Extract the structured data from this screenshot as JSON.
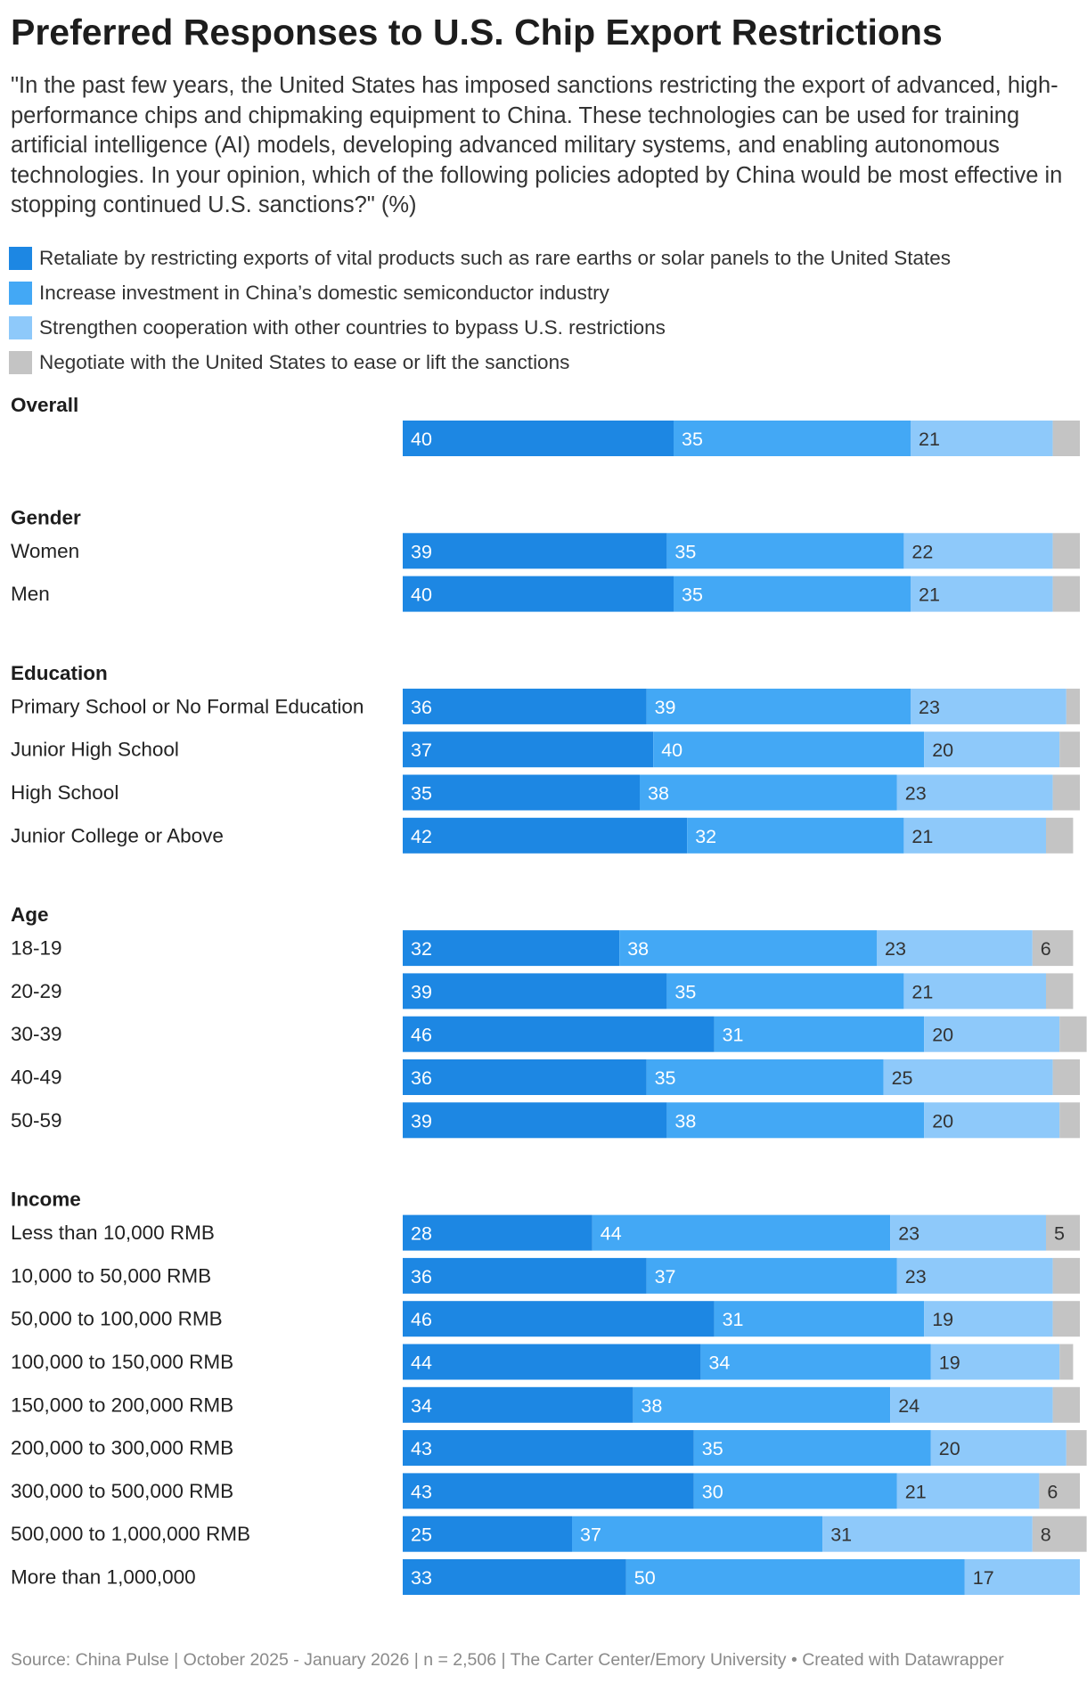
{
  "title": "Preferred Responses to U.S. Chip Export Restrictions",
  "subtitle": "\"In the past few years, the United States has imposed sanctions restricting the export of advanced, high-performance chips and chipmaking equipment to China. These technologies can be used for training artificial intelligence (AI) models, developing advanced military systems, and enabling autonomous technologies. In your opinion, which of the following policies adopted by China would be most effective in stopping continued U.S. sanctions?\" (%)",
  "source": "Source: China Pulse | October 2025 - January 2026 | n = 2,506 | The Carter Center/Emory University • Created with Datawrapper",
  "colors": {
    "retaliate": "#1d87e3",
    "invest": "#43a8f5",
    "cooperate": "#8ec9fa",
    "negotiate": "#c4c4c4",
    "label_dark_bg": "#ffffff",
    "label_light_bg": "#333333"
  },
  "chart_data": {
    "type": "bar",
    "orientation": "horizontal",
    "stacked": true,
    "unit": "%",
    "series": [
      {
        "name": "Retaliate by restricting exports of vital products such as rare earths or solar panels to the United States",
        "color": "#1d87e3"
      },
      {
        "name": "Increase investment in China’s domestic semiconductor industry",
        "color": "#43a8f5"
      },
      {
        "name": "Strengthen cooperation with other countries to bypass U.S. restrictions",
        "color": "#8ec9fa"
      },
      {
        "name": "Negotiate with the United States to ease or lift the sanctions",
        "color": "#c4c4c4"
      }
    ],
    "groups": [
      {
        "name": "Overall",
        "rows": [
          {
            "label": "",
            "values": [
              40,
              35,
              21,
              4
            ]
          }
        ]
      },
      {
        "name": "Gender",
        "rows": [
          {
            "label": "Women",
            "values": [
              39,
              35,
              22,
              4
            ]
          },
          {
            "label": "Men",
            "values": [
              40,
              35,
              21,
              4
            ]
          }
        ]
      },
      {
        "name": "Education",
        "rows": [
          {
            "label": "Primary School or No Formal Education",
            "values": [
              36,
              39,
              23,
              2
            ]
          },
          {
            "label": "Junior High School",
            "values": [
              37,
              40,
              20,
              3
            ]
          },
          {
            "label": "High School",
            "values": [
              35,
              38,
              23,
              4
            ]
          },
          {
            "label": "Junior College or Above",
            "values": [
              42,
              32,
              21,
              4
            ]
          }
        ]
      },
      {
        "name": "Age",
        "rows": [
          {
            "label": "18-19",
            "values": [
              32,
              38,
              23,
              6
            ]
          },
          {
            "label": "20-29",
            "values": [
              39,
              35,
              21,
              4
            ]
          },
          {
            "label": "30-39",
            "values": [
              46,
              31,
              20,
              4
            ]
          },
          {
            "label": "40-49",
            "values": [
              36,
              35,
              25,
              4
            ]
          },
          {
            "label": "50-59",
            "values": [
              39,
              38,
              20,
              3
            ]
          }
        ]
      },
      {
        "name": "Income",
        "rows": [
          {
            "label": "Less than 10,000 RMB",
            "values": [
              28,
              44,
              23,
              5
            ]
          },
          {
            "label": "10,000 to 50,000 RMB",
            "values": [
              36,
              37,
              23,
              4
            ]
          },
          {
            "label": "50,000 to 100,000 RMB",
            "values": [
              46,
              31,
              19,
              4
            ]
          },
          {
            "label": "100,000 to 150,000 RMB",
            "values": [
              44,
              34,
              19,
              2
            ]
          },
          {
            "label": "150,000 to 200,000 RMB",
            "values": [
              34,
              38,
              24,
              4
            ]
          },
          {
            "label": "200,000 to 300,000 RMB",
            "values": [
              43,
              35,
              20,
              3
            ]
          },
          {
            "label": "300,000 to 500,000 RMB",
            "values": [
              43,
              30,
              21,
              6
            ]
          },
          {
            "label": "500,000 to 1,000,000 RMB",
            "values": [
              25,
              37,
              31,
              8
            ]
          },
          {
            "label": "More than 1,000,000",
            "values": [
              33,
              50,
              17,
              0
            ]
          }
        ]
      }
    ],
    "label_min_value": 5,
    "xlim": [
      0,
      100
    ]
  }
}
